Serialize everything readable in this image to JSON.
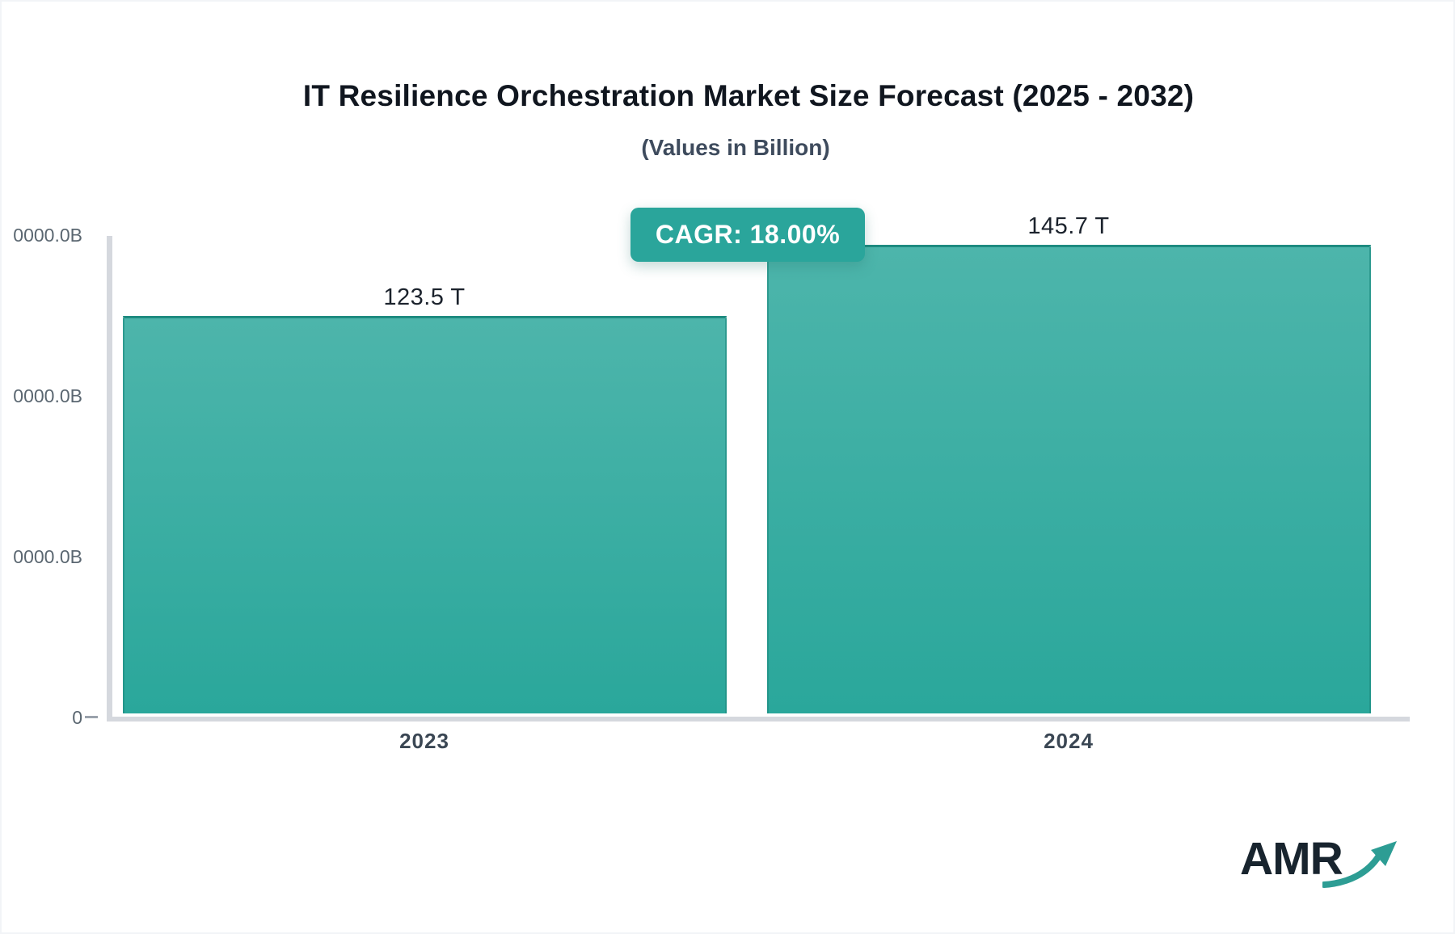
{
  "header": {
    "title": "IT Resilience Orchestration Market Size Forecast (2025 - 2032)",
    "subtitle": "(Values in Billion)"
  },
  "badge": {
    "label": "CAGR: 18.00%"
  },
  "chart_data": {
    "type": "bar",
    "title": "IT Resilience Orchestration Market Size Forecast (2025 - 2032)",
    "subtitle": "(Values in Billion)",
    "cagr_percent": 18.0,
    "categories": [
      "2023",
      "2024"
    ],
    "values_billion": [
      123500,
      145700
    ],
    "bar_value_labels": [
      "123.5 T",
      "145.7 T"
    ],
    "ylim": [
      0,
      150000
    ],
    "ytick_labels_visible": [
      "0000.0B",
      "0000.0B",
      "0000.0B",
      "0"
    ],
    "grid": false,
    "legend": false,
    "layout_hints": {
      "orientation": "vertical",
      "value_labels_position": "above-bar",
      "yaxis_side": "left"
    },
    "bar_color_top": "#4db5ab",
    "bar_color_bottom": "#2aa79b",
    "bar_border_color": "#1e8b80"
  },
  "logo": {
    "text": "AMR",
    "arrow_icon": "trend-up-arrow-icon",
    "arrow_color": "#2d9d94"
  },
  "colors": {
    "badge_bg": "#2aa59b",
    "axis": "#d5d8de",
    "title_text": "#10161f",
    "subtitle_text": "#3e4b5d",
    "ytick_text": "#5b6771",
    "xtick_text": "#3b4754",
    "background": "#ffffff"
  }
}
